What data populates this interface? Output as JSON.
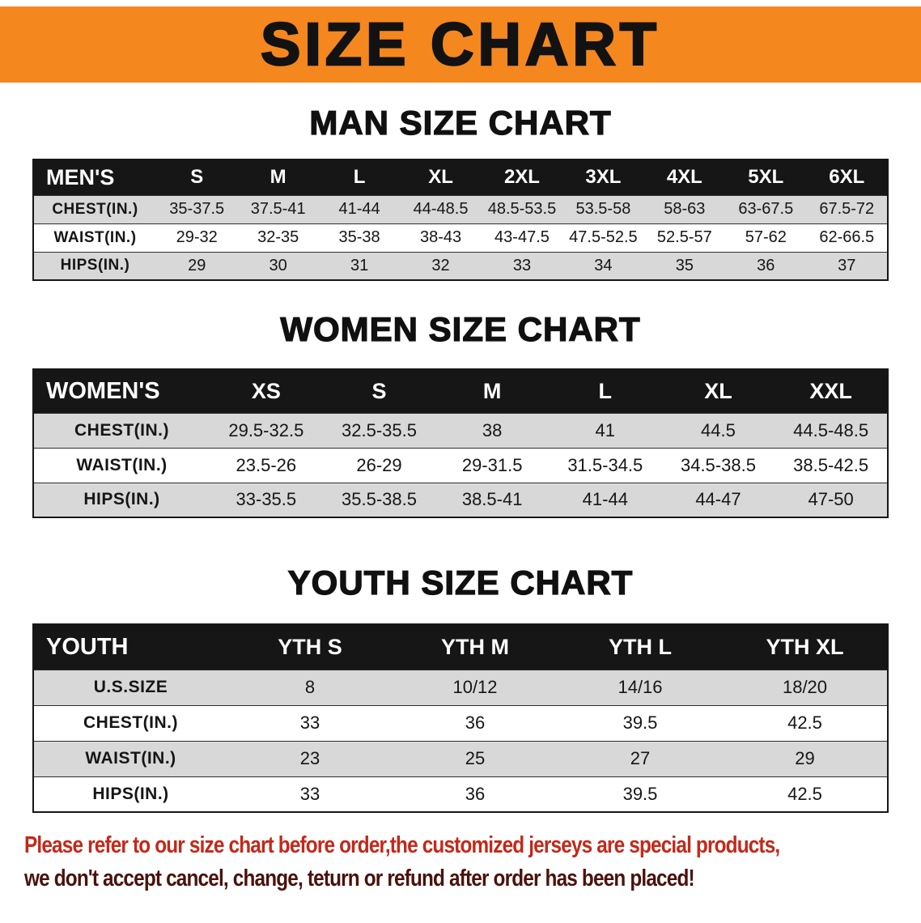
{
  "banner": {
    "title": "SIZE CHART"
  },
  "colors": {
    "banner_orange": "#F5871F",
    "table_header_black": "#161616",
    "row_gray": "#D8D8D8",
    "notice_red": "#C2291A",
    "notice_dark_red": "#4A120C"
  },
  "tables": [
    {
      "key": "mens",
      "heading": "MAN SIZE CHART",
      "header": [
        "MEN'S",
        "S",
        "M",
        "L",
        "XL",
        "2XL",
        "3XL",
        "4XL",
        "5XL",
        "6XL"
      ],
      "rows": [
        {
          "label": "CHEST(IN.)",
          "values": [
            "35-37.5",
            "37.5-41",
            "41-44",
            "44-48.5",
            "48.5-53.5",
            "53.5-58",
            "58-63",
            "63-67.5",
            "67.5-72"
          ]
        },
        {
          "label": "WAIST(IN.)",
          "values": [
            "29-32",
            "32-35",
            "35-38",
            "38-43",
            "43-47.5",
            "47.5-52.5",
            "52.5-57",
            "57-62",
            "62-66.5"
          ]
        },
        {
          "label": "HIPS(IN.)",
          "values": [
            "29",
            "30",
            "31",
            "32",
            "33",
            "34",
            "35",
            "36",
            "37"
          ]
        }
      ]
    },
    {
      "key": "womens",
      "heading": "WOMEN SIZE CHART",
      "header": [
        "WOMEN'S",
        "XS",
        "S",
        "M",
        "L",
        "XL",
        "XXL"
      ],
      "rows": [
        {
          "label": "CHEST(IN.)",
          "values": [
            "29.5-32.5",
            "32.5-35.5",
            "38",
            "41",
            "44.5",
            "44.5-48.5"
          ]
        },
        {
          "label": "WAIST(IN.)",
          "values": [
            "23.5-26",
            "26-29",
            "29-31.5",
            "31.5-34.5",
            "34.5-38.5",
            "38.5-42.5"
          ]
        },
        {
          "label": "HIPS(IN.)",
          "values": [
            "33-35.5",
            "35.5-38.5",
            "38.5-41",
            "41-44",
            "44-47",
            "47-50"
          ]
        }
      ]
    },
    {
      "key": "youth",
      "heading": "YOUTH SIZE CHART",
      "header": [
        "YOUTH",
        "YTH S",
        "YTH M",
        "YTH L",
        "YTH XL"
      ],
      "rows": [
        {
          "label": "U.S.SIZE",
          "values": [
            "8",
            "10/12",
            "14/16",
            "18/20"
          ]
        },
        {
          "label": "CHEST(IN.)",
          "values": [
            "33",
            "36",
            "39.5",
            "42.5"
          ]
        },
        {
          "label": "WAIST(IN.)",
          "values": [
            "23",
            "25",
            "27",
            "29"
          ]
        },
        {
          "label": "HIPS(IN.)",
          "values": [
            "33",
            "36",
            "39.5",
            "42.5"
          ]
        }
      ]
    }
  ],
  "footer": {
    "line1": "Please refer to our size chart before order,the customized jerseys are special products,",
    "line2": "we don't accept cancel, change, teturn or refund after order has been placed!"
  }
}
